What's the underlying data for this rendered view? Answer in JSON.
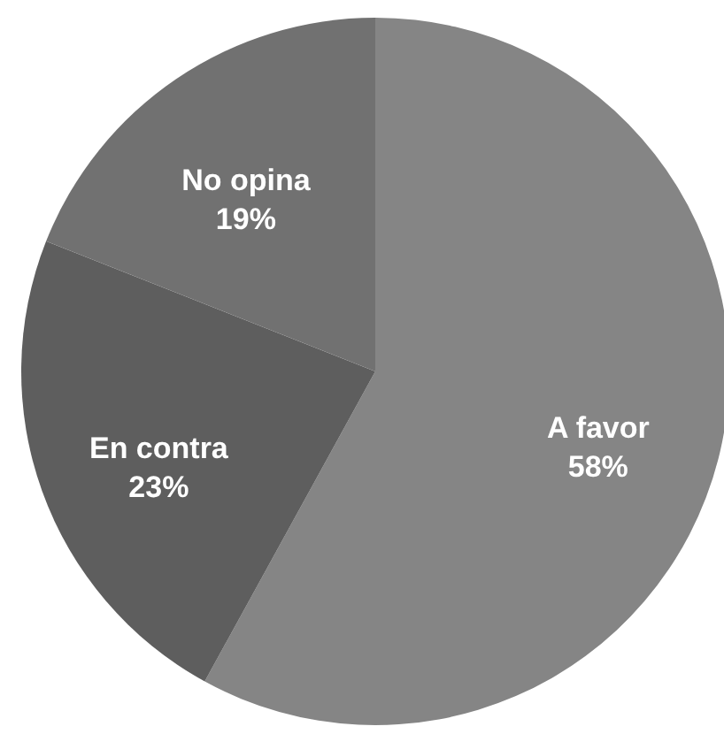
{
  "chart_data": {
    "type": "pie",
    "categories": [
      "A favor",
      "En contra",
      "No opina"
    ],
    "values": [
      58,
      23,
      19
    ],
    "colors": [
      "#858585",
      "#5e5e5e",
      "#717171"
    ],
    "value_labels": [
      "58%",
      "23%",
      "19%"
    ]
  }
}
